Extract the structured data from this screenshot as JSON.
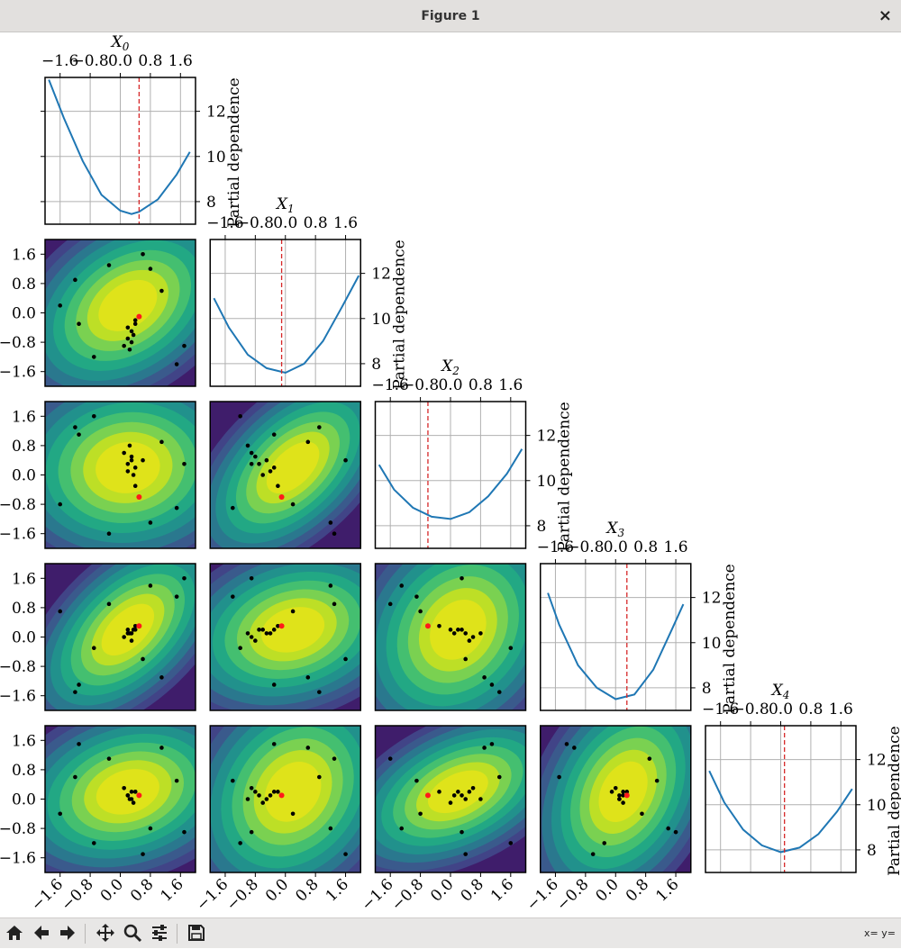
{
  "window": {
    "title": "Figure 1",
    "close_label": "×"
  },
  "toolbar": {
    "buttons": [
      {
        "name": "home",
        "icon": "home-icon"
      },
      {
        "name": "back",
        "icon": "arrow-left-icon"
      },
      {
        "name": "forward",
        "icon": "arrow-right-icon"
      },
      {
        "name": "pan",
        "icon": "move-icon"
      },
      {
        "name": "zoom",
        "icon": "zoom-icon"
      },
      {
        "name": "configure",
        "icon": "sliders-icon"
      },
      {
        "name": "save",
        "icon": "save-icon"
      }
    ],
    "coords": "x= y="
  },
  "chart_data": {
    "type": "objective-plot",
    "n_dims": 5,
    "dim_labels": [
      "X0",
      "X1",
      "X2",
      "X3",
      "X4"
    ],
    "ylabel": "Partial dependence",
    "xlim": [
      -2.0,
      2.0
    ],
    "ylim": [
      7.0,
      13.5
    ],
    "x_ticks": [
      -1.6,
      -0.8,
      0.0,
      0.8,
      1.6
    ],
    "x_tick_labels": [
      "−1.6",
      "−0.8",
      "0.0",
      "0.8",
      "1.6"
    ],
    "y_ticks": [
      8,
      10,
      12
    ],
    "pd_tick_labels": [
      "8",
      "10",
      "12"
    ],
    "minimum": [
      0.5,
      -0.1,
      -0.6,
      0.3,
      0.1
    ],
    "diagonal": [
      {
        "dim": 0,
        "x": [
          -1.9,
          -1.5,
          -1.0,
          -0.5,
          0.0,
          0.3,
          0.5,
          1.0,
          1.5,
          1.85
        ],
        "y": [
          13.4,
          11.7,
          9.8,
          8.3,
          7.6,
          7.45,
          7.55,
          8.1,
          9.2,
          10.2
        ]
      },
      {
        "dim": 1,
        "x": [
          -1.9,
          -1.5,
          -1.0,
          -0.5,
          0.0,
          0.5,
          1.0,
          1.5,
          1.95
        ],
        "y": [
          10.9,
          9.6,
          8.4,
          7.8,
          7.6,
          8.0,
          9.0,
          10.5,
          11.9
        ]
      },
      {
        "dim": 2,
        "x": [
          -1.9,
          -1.5,
          -1.0,
          -0.5,
          0.0,
          0.5,
          1.0,
          1.5,
          1.9
        ],
        "y": [
          10.7,
          9.6,
          8.8,
          8.4,
          8.3,
          8.6,
          9.3,
          10.3,
          11.4
        ]
      },
      {
        "dim": 3,
        "x": [
          -1.8,
          -1.5,
          -1.0,
          -0.5,
          0.0,
          0.5,
          1.0,
          1.5,
          1.8
        ],
        "y": [
          12.2,
          10.8,
          9.0,
          8.0,
          7.5,
          7.7,
          8.8,
          10.6,
          11.7
        ]
      },
      {
        "dim": 4,
        "x": [
          -1.9,
          -1.5,
          -1.0,
          -0.5,
          0.0,
          0.5,
          1.0,
          1.5,
          1.9
        ],
        "y": [
          11.5,
          10.1,
          8.9,
          8.2,
          7.9,
          8.1,
          8.7,
          9.7,
          10.7
        ]
      }
    ],
    "samples": [
      [
        0.2,
        -0.7,
        0.3,
        0.2,
        0.1
      ],
      [
        0.3,
        -0.5,
        0.4,
        0.1,
        0.0
      ],
      [
        0.4,
        -0.3,
        0.2,
        0.2,
        0.2
      ],
      [
        0.5,
        -0.1,
        -0.6,
        0.3,
        0.1
      ],
      [
        0.1,
        -0.9,
        0.6,
        0.0,
        0.3
      ],
      [
        0.3,
        -0.8,
        0.5,
        -0.1,
        0.2
      ],
      [
        0.35,
        -0.6,
        0.0,
        0.2,
        -0.1
      ],
      [
        0.25,
        -1.0,
        0.8,
        0.1,
        0.0
      ],
      [
        0.4,
        -0.2,
        -0.3,
        0.3,
        0.2
      ],
      [
        0.2,
        -0.4,
        0.1,
        0.1,
        0.1
      ],
      [
        -1.2,
        0.9,
        1.3,
        -1.5,
        0.6
      ],
      [
        0.8,
        1.2,
        -1.3,
        1.4,
        -0.8
      ],
      [
        1.5,
        -1.4,
        -0.9,
        1.1,
        0.5
      ],
      [
        -0.7,
        -1.2,
        1.6,
        -0.3,
        -1.2
      ],
      [
        1.1,
        0.6,
        0.9,
        -1.1,
        1.4
      ],
      [
        -1.6,
        0.2,
        -0.8,
        0.7,
        -0.4
      ],
      [
        0.6,
        1.6,
        0.4,
        -0.6,
        -1.5
      ],
      [
        -0.3,
        1.3,
        -1.6,
        0.9,
        1.1
      ],
      [
        1.7,
        -0.9,
        0.3,
        1.6,
        -0.9
      ],
      [
        -1.1,
        -0.3,
        1.1,
        -1.3,
        1.5
      ]
    ]
  }
}
